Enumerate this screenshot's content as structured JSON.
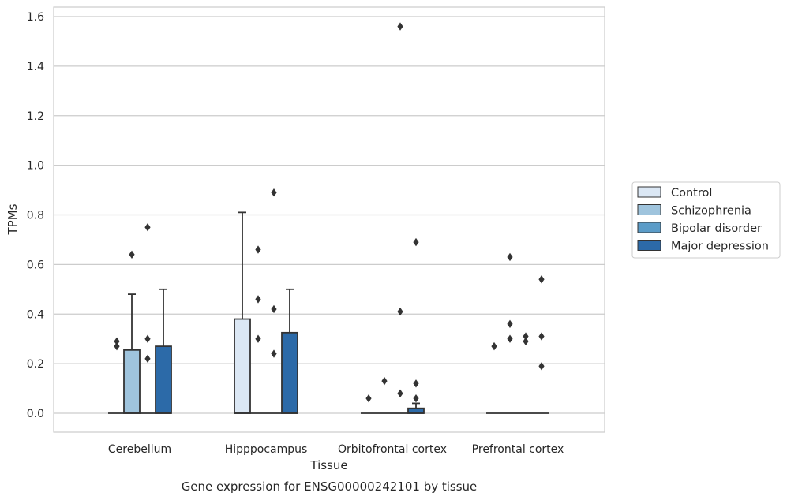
{
  "chart_data": {
    "type": "box",
    "title": "",
    "caption": "Gene expression for ENSG00000242101 by tissue",
    "xlabel": "Tissue",
    "ylabel": "TPMs",
    "ylim": [
      -0.075,
      1.645
    ],
    "yticks": [
      0.0,
      0.2,
      0.4,
      0.6,
      0.8,
      1.0,
      1.2,
      1.4,
      1.6
    ],
    "ytick_labels": [
      "0.0",
      "0.2",
      "0.4",
      "0.6",
      "0.8",
      "1.0",
      "1.2",
      "1.4",
      "1.6"
    ],
    "grid": "horizontal",
    "legend_position": "right",
    "categories": [
      "Cerebellum",
      "Hipppocampus",
      "Orbitofrontal cortex",
      "Prefrontal cortex"
    ],
    "series": [
      {
        "name": "Control",
        "color": "#dbe7f4",
        "boxes": [
          {
            "q1": 0,
            "median": 0,
            "q3": 0,
            "whisker_low": 0,
            "whisker_high": 0,
            "outliers": []
          },
          {
            "q1": 0,
            "median": 0,
            "q3": 0.38,
            "whisker_low": 0,
            "whisker_high": 0.81,
            "outliers": []
          },
          {
            "q1": 0,
            "median": 0,
            "q3": 0,
            "whisker_low": 0,
            "whisker_high": 0,
            "outliers": [
              0.06
            ]
          },
          {
            "q1": 0,
            "median": 0,
            "q3": 0,
            "whisker_low": 0,
            "whisker_high": 0,
            "outliers": [
              0.27
            ]
          }
        ]
      },
      {
        "name": "Schizophrenia",
        "color": "#9fc4dd",
        "boxes": [
          {
            "q1": 0,
            "median": 0,
            "q3": 0.255,
            "whisker_low": 0,
            "whisker_high": 0.48,
            "outliers": [
              0.64
            ]
          },
          {
            "q1": 0,
            "median": 0,
            "q3": 0,
            "whisker_low": 0,
            "whisker_high": 0,
            "outliers": [
              0.3,
              0.46,
              0.66
            ]
          },
          {
            "q1": 0,
            "median": 0,
            "q3": 0,
            "whisker_low": 0,
            "whisker_high": 0,
            "outliers": [
              0.13
            ]
          },
          {
            "q1": 0,
            "median": 0,
            "q3": 0,
            "whisker_low": 0,
            "whisker_high": 0,
            "outliers": [
              0.3,
              0.36,
              0.63
            ]
          }
        ]
      },
      {
        "name": "Bipolar disorder",
        "color": "#5b9cc8",
        "boxes": [
          {
            "q1": 0,
            "median": 0,
            "q3": 0,
            "whisker_low": 0,
            "whisker_high": 0,
            "outliers": [
              0.22,
              0.3,
              0.75
            ]
          },
          {
            "q1": 0,
            "median": 0,
            "q3": 0,
            "whisker_low": 0,
            "whisker_high": 0,
            "outliers": [
              0.24,
              0.42,
              0.89
            ]
          },
          {
            "q1": 0,
            "median": 0,
            "q3": 0,
            "whisker_low": 0,
            "whisker_high": 0,
            "outliers": [
              0.08,
              0.41,
              1.56
            ]
          },
          {
            "q1": 0,
            "median": 0,
            "q3": 0,
            "whisker_low": 0,
            "whisker_high": 0,
            "outliers": [
              0.29,
              0.31
            ]
          }
        ]
      },
      {
        "name": "Major depression",
        "color": "#2c6aa8",
        "boxes": [
          {
            "q1": 0,
            "median": 0,
            "q3": 0.27,
            "whisker_low": 0,
            "whisker_high": 0.5,
            "outliers": []
          },
          {
            "q1": 0,
            "median": 0,
            "q3": 0.325,
            "whisker_low": 0,
            "whisker_high": 0.5,
            "outliers": []
          },
          {
            "q1": 0,
            "median": 0,
            "q3": 0.02,
            "whisker_low": 0,
            "whisker_high": 0.04,
            "outliers": [
              0.06,
              0.12,
              0.69
            ]
          },
          {
            "q1": 0,
            "median": 0,
            "q3": 0,
            "whisker_low": 0,
            "whisker_high": 0,
            "outliers": [
              0.19,
              0.31,
              0.54
            ]
          }
        ]
      }
    ]
  },
  "left_outliers": [
    {
      "category_index": 0,
      "values": [
        0.27,
        0.29
      ]
    }
  ],
  "colors": {
    "edge": "#333333",
    "grid": "#cccccc",
    "frame": "#cccccc",
    "text": "#262626"
  }
}
